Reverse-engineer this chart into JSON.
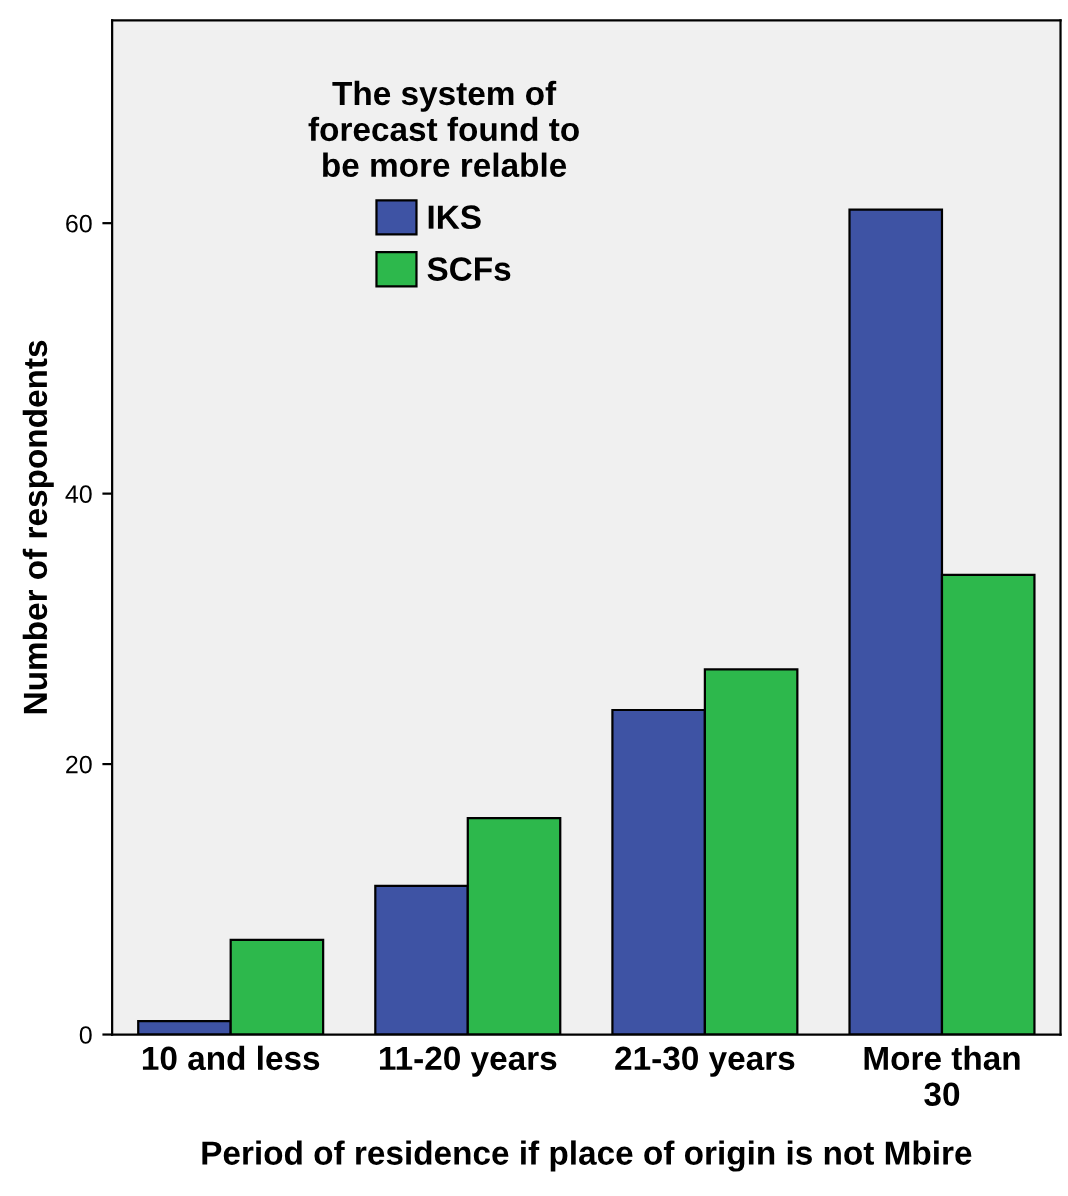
{
  "chart_data": {
    "type": "bar",
    "xlabel": "Period of residence if place of origin is not Mbire",
    "ylabel": "Number of respondents",
    "legend_title": "The system of\nforecast found to\nbe more relable",
    "categories": [
      "10 and less",
      "11-20 years",
      "21-30 years",
      "More than\n30"
    ],
    "series": [
      {
        "name": "IKS",
        "color": "#3e53a4",
        "values": [
          1,
          11,
          24,
          61
        ]
      },
      {
        "name": "SCFs",
        "color": "#2db84c",
        "values": [
          7,
          16,
          27,
          34
        ]
      }
    ],
    "ylim": [
      0,
      75
    ],
    "yticks": [
      0,
      20,
      40,
      60
    ],
    "grid": false,
    "legend": "top center"
  }
}
